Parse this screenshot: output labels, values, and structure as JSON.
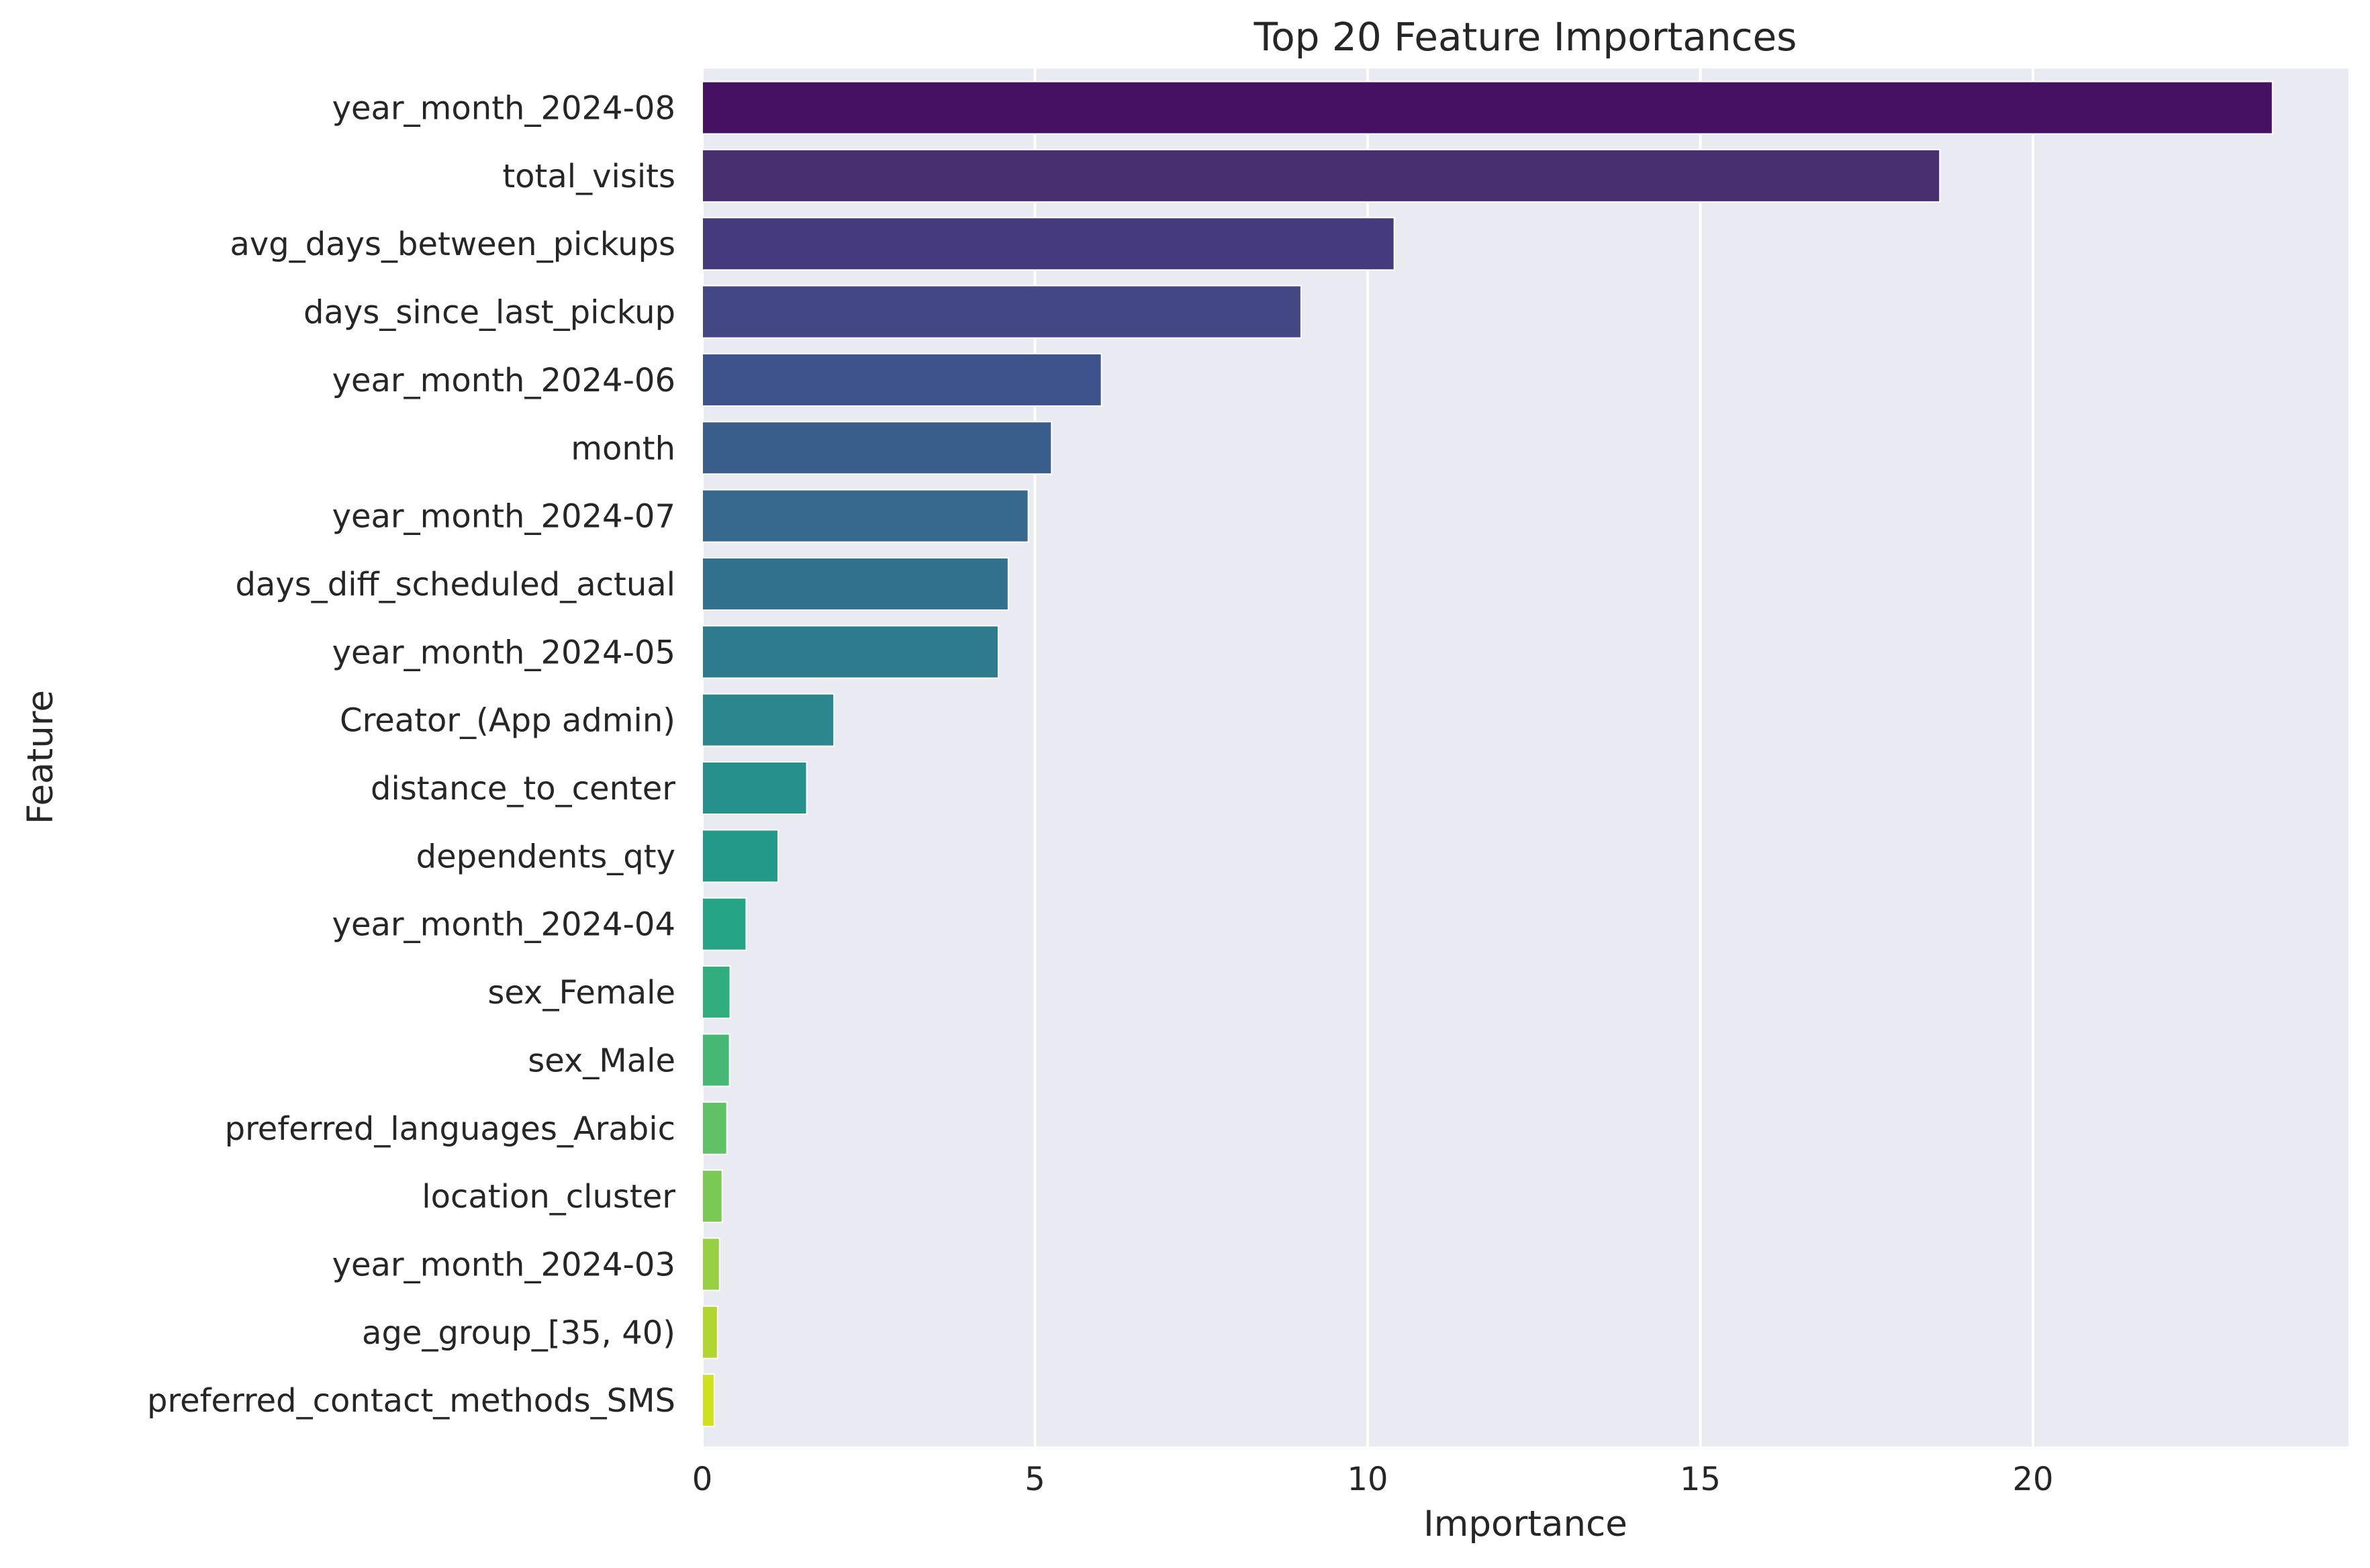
{
  "chart_data": {
    "type": "bar",
    "orientation": "horizontal",
    "title": "Top 20 Feature Importances",
    "xlabel": "Importance",
    "ylabel": "Feature",
    "xlim": [
      0,
      24.7
    ],
    "xticks": [
      0,
      5,
      10,
      15,
      20
    ],
    "grid": true,
    "legend": "none",
    "palette": "viridis",
    "categories": [
      "year_month_2024-08",
      "total_visits",
      "avg_days_between_pickups",
      "days_since_last_pickup",
      "year_month_2024-06",
      "month",
      "year_month_2024-07",
      "days_diff_scheduled_actual",
      "year_month_2024-05",
      "Creator_(App admin)",
      "distance_to_center",
      "dependents_qty",
      "year_month_2024-04",
      "sex_Female",
      "sex_Male",
      "preferred_languages_Arabic",
      "location_cluster",
      "year_month_2024-03",
      "age_group_[35, 40)",
      "preferred_contact_methods_SMS"
    ],
    "values": [
      23.6,
      18.6,
      10.4,
      9.0,
      6.0,
      5.25,
      4.9,
      4.6,
      4.45,
      1.98,
      1.57,
      1.14,
      0.66,
      0.42,
      0.41,
      0.37,
      0.3,
      0.26,
      0.23,
      0.18
    ],
    "colors": [
      "#471163",
      "#482f70",
      "#453b7c",
      "#434885",
      "#3e528b",
      "#3a5e8c",
      "#37688d",
      "#32718e",
      "#2e7b8e",
      "#2b868e",
      "#26918c",
      "#239a89",
      "#25a585",
      "#31ae7e",
      "#45b874",
      "#60c166",
      "#7ac955",
      "#97d043",
      "#b2d631",
      "#cfe11c"
    ]
  }
}
